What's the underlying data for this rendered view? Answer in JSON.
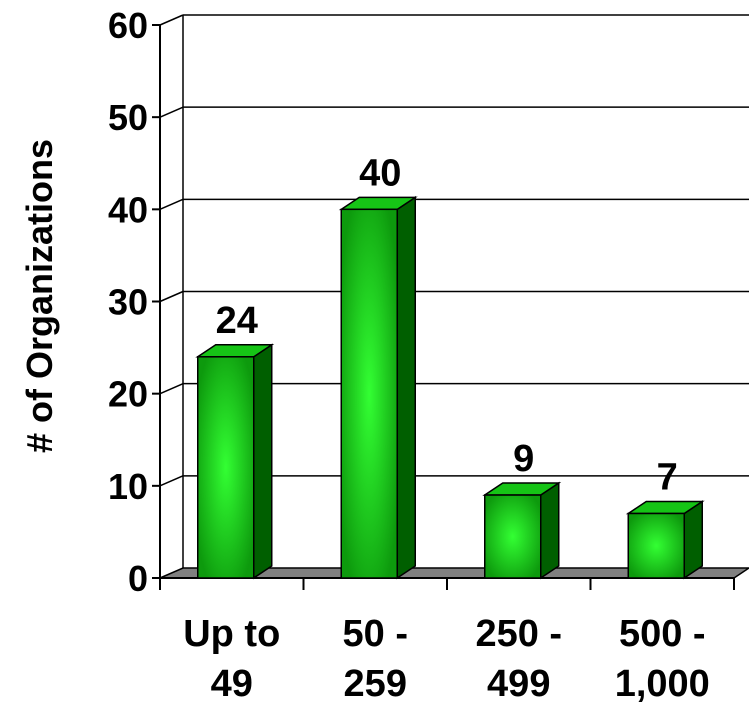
{
  "chart_data": {
    "type": "bar",
    "style": "3d",
    "title": "",
    "xlabel": "",
    "ylabel": "# of Organizations",
    "ylim": [
      0,
      60
    ],
    "yticks": [
      0,
      10,
      20,
      30,
      40,
      50,
      60
    ],
    "grid": true,
    "legend": "none",
    "categories": [
      [
        "Up to",
        "49"
      ],
      [
        "50 -",
        "259"
      ],
      [
        "250 -",
        "499"
      ],
      [
        "500 -",
        "1,000"
      ]
    ],
    "values": [
      24,
      40,
      9,
      7
    ],
    "data_labels": [
      "24",
      "40",
      "9",
      "7"
    ],
    "colors": {
      "bar_front": "#0d9a0d",
      "bar_highlight": "#33ff33",
      "bar_top": "#16c416",
      "bar_side": "#005f00",
      "floor": "#808080",
      "grid": "#000000"
    }
  }
}
